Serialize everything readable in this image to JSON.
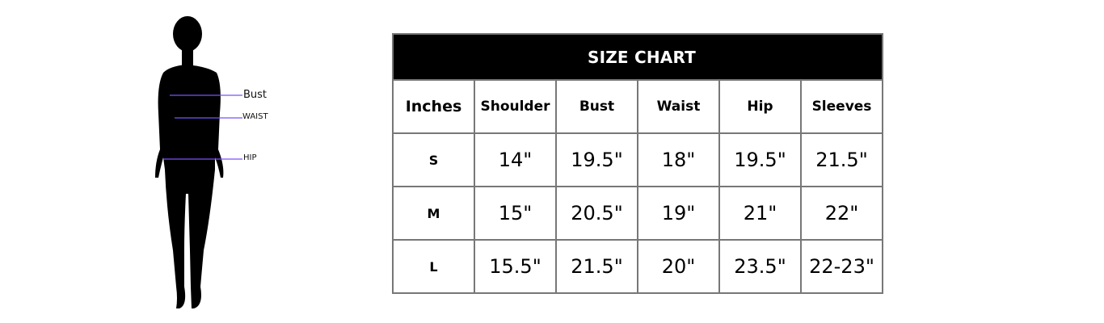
{
  "figure": {
    "labels": {
      "bust": "Bust",
      "waist": "WAIST",
      "hip": "HIP"
    },
    "line_color": "#7b4fff"
  },
  "size_chart": {
    "title": "SIZE CHART",
    "columns": [
      "Inches",
      "Shoulder",
      "Bust",
      "Waist",
      "Hip",
      "Sleeves"
    ],
    "rows": [
      {
        "size": "S",
        "values": [
          "14\"",
          "19.5\"",
          "18\"",
          "19.5\"",
          "21.5\""
        ]
      },
      {
        "size": "M",
        "values": [
          "15\"",
          "20.5\"",
          "19\"",
          "21\"",
          "22\""
        ]
      },
      {
        "size": "L",
        "values": [
          "15.5\"",
          "21.5\"",
          "20\"",
          "23.5\"",
          "22-23\""
        ]
      }
    ]
  }
}
